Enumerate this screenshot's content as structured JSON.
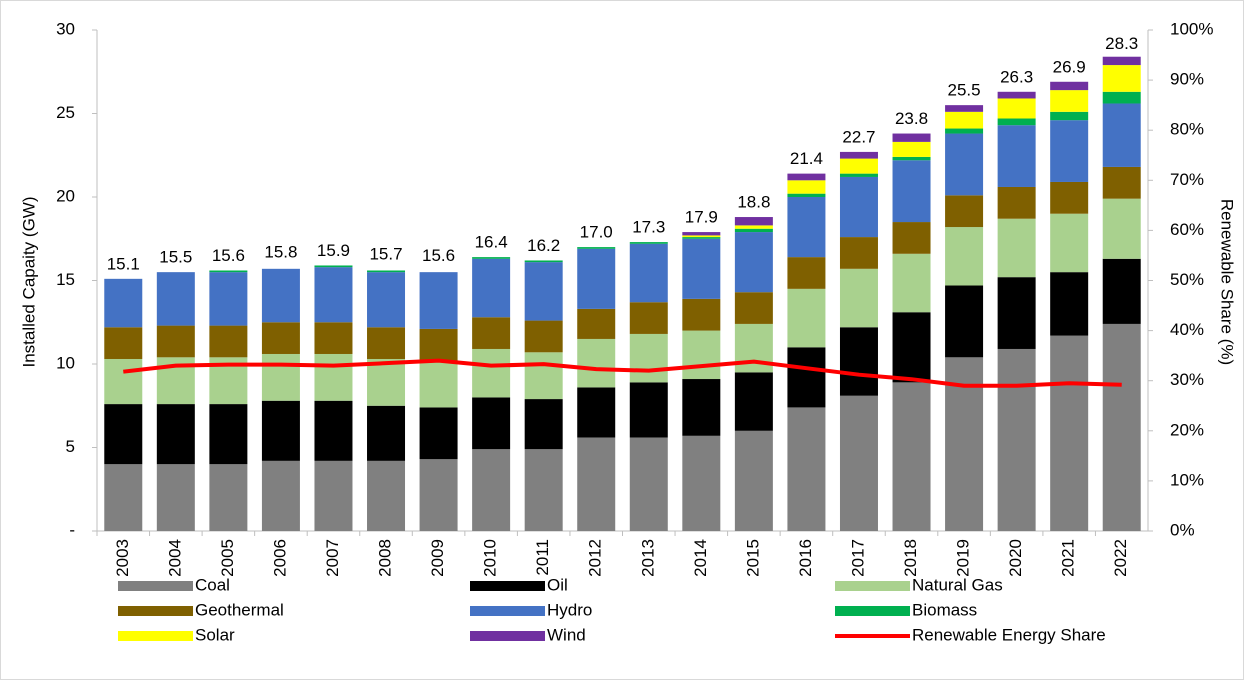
{
  "chart_data": {
    "type": "bar",
    "stacked": true,
    "y_label": "Installed Capaity (GW)",
    "y2_label": "Renewable Share (%)",
    "categories": [
      "2003",
      "2004",
      "2005",
      "2006",
      "2007",
      "2008",
      "2009",
      "2010",
      "2011",
      "2012",
      "2013",
      "2014",
      "2015",
      "2016",
      "2017",
      "2018",
      "2019",
      "2020",
      "2021",
      "2022"
    ],
    "ylim": [
      0,
      30
    ],
    "yticks": [
      {
        "value": 0,
        "label": "-"
      },
      5,
      10,
      15,
      20,
      25,
      30
    ],
    "y2lim": [
      0,
      100
    ],
    "y2ticks": [
      {
        "value": 0,
        "label": "0%"
      },
      {
        "value": 10,
        "label": "10%"
      },
      {
        "value": 20,
        "label": "20%"
      },
      {
        "value": 30,
        "label": "30%"
      },
      {
        "value": 40,
        "label": "40%"
      },
      {
        "value": 50,
        "label": "50%"
      },
      {
        "value": 60,
        "label": "60%"
      },
      {
        "value": 70,
        "label": "70%"
      },
      {
        "value": 80,
        "label": "80%"
      },
      {
        "value": 90,
        "label": "90%"
      },
      {
        "value": 100,
        "label": "100%"
      }
    ],
    "series": [
      {
        "name": "Coal",
        "color": "#808080",
        "values": [
          4.0,
          4.0,
          4.0,
          4.2,
          4.2,
          4.2,
          4.3,
          4.9,
          4.9,
          5.6,
          5.6,
          5.7,
          6.0,
          7.4,
          8.1,
          8.9,
          10.4,
          10.9,
          11.7,
          12.4
        ]
      },
      {
        "name": "Oil",
        "color": "#000000",
        "values": [
          3.6,
          3.6,
          3.6,
          3.6,
          3.6,
          3.3,
          3.1,
          3.1,
          3.0,
          3.0,
          3.3,
          3.4,
          3.5,
          3.6,
          4.1,
          4.2,
          4.3,
          4.3,
          3.8,
          3.9
        ]
      },
      {
        "name": "Natural Gas",
        "color": "#a9d18e",
        "values": [
          2.7,
          2.8,
          2.8,
          2.8,
          2.8,
          2.8,
          2.8,
          2.9,
          2.8,
          2.9,
          2.9,
          2.9,
          2.9,
          3.5,
          3.5,
          3.5,
          3.5,
          3.5,
          3.5,
          3.6
        ]
      },
      {
        "name": "Geothermal",
        "color": "#7f6000",
        "values": [
          1.9,
          1.9,
          1.9,
          1.9,
          1.9,
          1.9,
          1.9,
          1.9,
          1.9,
          1.8,
          1.9,
          1.9,
          1.9,
          1.9,
          1.9,
          1.9,
          1.9,
          1.9,
          1.9,
          1.9
        ]
      },
      {
        "name": "Hydro",
        "color": "#4472c4",
        "values": [
          2.9,
          3.2,
          3.2,
          3.2,
          3.3,
          3.3,
          3.4,
          3.5,
          3.5,
          3.6,
          3.5,
          3.6,
          3.6,
          3.6,
          3.6,
          3.7,
          3.7,
          3.7,
          3.7,
          3.8
        ]
      },
      {
        "name": "Biomass",
        "color": "#00b050",
        "values": [
          0,
          0,
          0.1,
          0,
          0.1,
          0.1,
          0,
          0.1,
          0.1,
          0.1,
          0.1,
          0.1,
          0.2,
          0.2,
          0.2,
          0.2,
          0.3,
          0.4,
          0.5,
          0.7
        ]
      },
      {
        "name": "Solar",
        "color": "#ffff00",
        "values": [
          0,
          0,
          0,
          0,
          0,
          0,
          0,
          0,
          0,
          0,
          0,
          0.1,
          0.2,
          0.8,
          0.9,
          0.9,
          1.0,
          1.2,
          1.3,
          1.6
        ]
      },
      {
        "name": "Wind",
        "color": "#7030a0",
        "values": [
          0,
          0,
          0,
          0,
          0,
          0,
          0,
          0,
          0,
          0,
          0,
          0.2,
          0.5,
          0.4,
          0.4,
          0.5,
          0.4,
          0.4,
          0.5,
          0.5
        ]
      },
      {
        "name": "Renewable Energy Share",
        "color": "#ff0000",
        "type": "line",
        "axis": "y2",
        "values": [
          31.8,
          33,
          33.2,
          33.2,
          33,
          33.5,
          34,
          33,
          33.3,
          32.3,
          32,
          32.9,
          33.8,
          32.5,
          31.2,
          30.3,
          29,
          29,
          29.5,
          29.2
        ]
      }
    ],
    "totals": {
      "values": [
        15.1,
        15.5,
        15.6,
        15.8,
        15.9,
        15.7,
        15.6,
        16.4,
        16.2,
        17.0,
        17.3,
        17.9,
        18.8,
        21.4,
        22.7,
        23.8,
        25.5,
        26.3,
        26.9,
        28.3
      ],
      "value_labels": [
        "15.1",
        "15.5",
        "15.6",
        "15.8",
        "15.9",
        "15.7",
        "15.6",
        "16.4",
        "16.2",
        "17.0",
        "17.3",
        "17.9",
        "18.8",
        "21.4",
        "22.7",
        "23.8",
        "25.5",
        "26.3",
        "26.9",
        "28.3"
      ]
    }
  }
}
